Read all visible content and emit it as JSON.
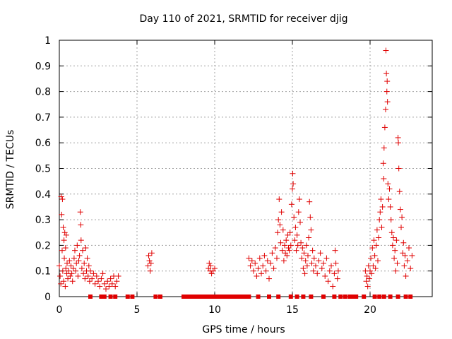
{
  "chart_data": {
    "type": "scatter",
    "title": "Day 110 of 2021, SRMTID for receiver djig",
    "xlabel": "GPS time / hours",
    "ylabel": "SRMTID / TECUs",
    "xlim": [
      0,
      24
    ],
    "ylim": [
      0,
      1
    ],
    "xticks": [
      0,
      5,
      10,
      15,
      20
    ],
    "xtick_labels": [
      "0",
      "5",
      "10",
      "15",
      "20"
    ],
    "yticks": [
      0,
      0.1,
      0.2,
      0.3,
      0.4,
      0.5,
      0.6,
      0.7,
      0.8,
      0.9,
      1
    ],
    "ytick_labels": [
      "0",
      "0.1",
      "0.2",
      "0.3",
      "0.4",
      "0.5",
      "0.6",
      "0.7",
      "0.8",
      "0.9",
      "1"
    ],
    "grid": true,
    "marker": "+",
    "color": "#e00000",
    "series": [
      {
        "name": "SRMTID",
        "points": [
          [
            0.0,
            0.12
          ],
          [
            0.05,
            0.08
          ],
          [
            0.1,
            0.05
          ],
          [
            0.12,
            0.39
          ],
          [
            0.15,
            0.32
          ],
          [
            0.18,
            0.18
          ],
          [
            0.2,
            0.38
          ],
          [
            0.22,
            0.1
          ],
          [
            0.25,
            0.27
          ],
          [
            0.28,
            0.06
          ],
          [
            0.3,
            0.22
          ],
          [
            0.32,
            0.15
          ],
          [
            0.35,
            0.25
          ],
          [
            0.38,
            0.04
          ],
          [
            0.4,
            0.19
          ],
          [
            0.42,
            0.11
          ],
          [
            0.45,
            0.24
          ],
          [
            0.48,
            0.09
          ],
          [
            0.5,
            0.13
          ],
          [
            0.55,
            0.07
          ],
          [
            0.6,
            0.1
          ],
          [
            0.65,
            0.14
          ],
          [
            0.7,
            0.08
          ],
          [
            0.75,
            0.12
          ],
          [
            0.8,
            0.09
          ],
          [
            0.85,
            0.06
          ],
          [
            0.9,
            0.11
          ],
          [
            0.95,
            0.15
          ],
          [
            1.0,
            0.18
          ],
          [
            1.05,
            0.1
          ],
          [
            1.1,
            0.13
          ],
          [
            1.15,
            0.2
          ],
          [
            1.2,
            0.08
          ],
          [
            1.25,
            0.14
          ],
          [
            1.3,
            0.16
          ],
          [
            1.35,
            0.33
          ],
          [
            1.38,
            0.28
          ],
          [
            1.4,
            0.22
          ],
          [
            1.45,
            0.11
          ],
          [
            1.5,
            0.18
          ],
          [
            1.55,
            0.09
          ],
          [
            1.6,
            0.13
          ],
          [
            1.65,
            0.07
          ],
          [
            1.7,
            0.19
          ],
          [
            1.75,
            0.1
          ],
          [
            1.8,
            0.15
          ],
          [
            1.85,
            0.08
          ],
          [
            1.9,
            0.12
          ],
          [
            1.95,
            0.06
          ],
          [
            2.0,
            0.1
          ],
          [
            2.1,
            0.07
          ],
          [
            2.2,
            0.09
          ],
          [
            2.3,
            0.05
          ],
          [
            2.4,
            0.08
          ],
          [
            2.5,
            0.06
          ],
          [
            2.6,
            0.04
          ],
          [
            2.7,
            0.07
          ],
          [
            2.8,
            0.09
          ],
          [
            2.9,
            0.05
          ],
          [
            3.0,
            0.03
          ],
          [
            3.1,
            0.06
          ],
          [
            3.2,
            0.04
          ],
          [
            3.3,
            0.07
          ],
          [
            3.4,
            0.05
          ],
          [
            3.5,
            0.08
          ],
          [
            3.6,
            0.04
          ],
          [
            3.7,
            0.06
          ],
          [
            3.8,
            0.08
          ],
          [
            5.7,
            0.12
          ],
          [
            5.75,
            0.16
          ],
          [
            5.8,
            0.14
          ],
          [
            5.85,
            0.1
          ],
          [
            5.9,
            0.13
          ],
          [
            5.95,
            0.17
          ],
          [
            9.6,
            0.11
          ],
          [
            9.65,
            0.13
          ],
          [
            9.7,
            0.1
          ],
          [
            9.75,
            0.12
          ],
          [
            9.8,
            0.09
          ],
          [
            9.9,
            0.1
          ],
          [
            10.0,
            0.11
          ],
          [
            12.2,
            0.15
          ],
          [
            12.3,
            0.12
          ],
          [
            12.4,
            0.14
          ],
          [
            12.5,
            0.1
          ],
          [
            12.6,
            0.13
          ],
          [
            12.7,
            0.08
          ],
          [
            12.8,
            0.11
          ],
          [
            12.9,
            0.15
          ],
          [
            13.0,
            0.09
          ],
          [
            13.1,
            0.12
          ],
          [
            13.2,
            0.16
          ],
          [
            13.3,
            0.1
          ],
          [
            13.4,
            0.14
          ],
          [
            13.5,
            0.07
          ],
          [
            13.6,
            0.13
          ],
          [
            13.7,
            0.17
          ],
          [
            13.8,
            0.11
          ],
          [
            13.9,
            0.19
          ],
          [
            14.0,
            0.15
          ],
          [
            14.05,
            0.25
          ],
          [
            14.1,
            0.3
          ],
          [
            14.15,
            0.38
          ],
          [
            14.2,
            0.28
          ],
          [
            14.25,
            0.21
          ],
          [
            14.3,
            0.33
          ],
          [
            14.35,
            0.18
          ],
          [
            14.4,
            0.26
          ],
          [
            14.45,
            0.14
          ],
          [
            14.5,
            0.2
          ],
          [
            14.55,
            0.17
          ],
          [
            14.6,
            0.22
          ],
          [
            14.65,
            0.16
          ],
          [
            14.7,
            0.24
          ],
          [
            14.75,
            0.19
          ],
          [
            14.8,
            0.18
          ],
          [
            14.85,
            0.25
          ],
          [
            14.9,
            0.2
          ],
          [
            14.95,
            0.36
          ],
          [
            15.0,
            0.42
          ],
          [
            15.02,
            0.48
          ],
          [
            15.05,
            0.44
          ],
          [
            15.1,
            0.31
          ],
          [
            15.15,
            0.22
          ],
          [
            15.2,
            0.27
          ],
          [
            15.25,
            0.18
          ],
          [
            15.3,
            0.24
          ],
          [
            15.35,
            0.2
          ],
          [
            15.4,
            0.33
          ],
          [
            15.45,
            0.38
          ],
          [
            15.5,
            0.29
          ],
          [
            15.55,
            0.21
          ],
          [
            15.6,
            0.15
          ],
          [
            15.65,
            0.19
          ],
          [
            15.7,
            0.11
          ],
          [
            15.75,
            0.17
          ],
          [
            15.8,
            0.09
          ],
          [
            15.85,
            0.14
          ],
          [
            15.9,
            0.2
          ],
          [
            15.95,
            0.12
          ],
          [
            16.0,
            0.16
          ],
          [
            16.05,
            0.23
          ],
          [
            16.1,
            0.37
          ],
          [
            16.15,
            0.31
          ],
          [
            16.2,
            0.26
          ],
          [
            16.25,
            0.13
          ],
          [
            16.3,
            0.18
          ],
          [
            16.35,
            0.1
          ],
          [
            16.4,
            0.15
          ],
          [
            16.5,
            0.12
          ],
          [
            16.6,
            0.09
          ],
          [
            16.7,
            0.14
          ],
          [
            16.8,
            0.17
          ],
          [
            16.9,
            0.11
          ],
          [
            17.0,
            0.13
          ],
          [
            17.1,
            0.08
          ],
          [
            17.2,
            0.15
          ],
          [
            17.3,
            0.06
          ],
          [
            17.4,
            0.1
          ],
          [
            17.5,
            0.12
          ],
          [
            17.6,
            0.04
          ],
          [
            17.7,
            0.09
          ],
          [
            17.75,
            0.18
          ],
          [
            17.8,
            0.13
          ],
          [
            17.9,
            0.07
          ],
          [
            17.95,
            0.1
          ],
          [
            19.7,
            0.1
          ],
          [
            19.75,
            0.06
          ],
          [
            19.8,
            0.08
          ],
          [
            19.85,
            0.04
          ],
          [
            19.9,
            0.12
          ],
          [
            19.95,
            0.07
          ],
          [
            20.0,
            0.1
          ],
          [
            20.05,
            0.15
          ],
          [
            20.1,
            0.09
          ],
          [
            20.15,
            0.19
          ],
          [
            20.2,
            0.12
          ],
          [
            20.25,
            0.22
          ],
          [
            20.3,
            0.16
          ],
          [
            20.35,
            0.11
          ],
          [
            20.4,
            0.2
          ],
          [
            20.45,
            0.26
          ],
          [
            20.5,
            0.14
          ],
          [
            20.55,
            0.23
          ],
          [
            20.6,
            0.3
          ],
          [
            20.65,
            0.33
          ],
          [
            20.7,
            0.38
          ],
          [
            20.75,
            0.27
          ],
          [
            20.8,
            0.35
          ],
          [
            20.85,
            0.52
          ],
          [
            20.88,
            0.46
          ],
          [
            20.9,
            0.58
          ],
          [
            20.95,
            0.66
          ],
          [
            21.0,
            0.73
          ],
          [
            21.02,
            0.96
          ],
          [
            21.05,
            0.87
          ],
          [
            21.08,
            0.8
          ],
          [
            21.1,
            0.84
          ],
          [
            21.12,
            0.76
          ],
          [
            21.15,
            0.44
          ],
          [
            21.2,
            0.38
          ],
          [
            21.25,
            0.42
          ],
          [
            21.3,
            0.35
          ],
          [
            21.35,
            0.3
          ],
          [
            21.4,
            0.25
          ],
          [
            21.45,
            0.2
          ],
          [
            21.5,
            0.23
          ],
          [
            21.55,
            0.15
          ],
          [
            21.6,
            0.18
          ],
          [
            21.65,
            0.1
          ],
          [
            21.7,
            0.22
          ],
          [
            21.75,
            0.13
          ],
          [
            21.8,
            0.62
          ],
          [
            21.82,
            0.6
          ],
          [
            21.85,
            0.5
          ],
          [
            21.9,
            0.41
          ],
          [
            21.95,
            0.34
          ],
          [
            22.0,
            0.27
          ],
          [
            22.05,
            0.31
          ],
          [
            22.1,
            0.17
          ],
          [
            22.15,
            0.21
          ],
          [
            22.2,
            0.12
          ],
          [
            22.25,
            0.16
          ],
          [
            22.3,
            0.08
          ],
          [
            22.4,
            0.14
          ],
          [
            22.5,
            0.19
          ],
          [
            22.6,
            0.11
          ],
          [
            22.7,
            0.16
          ]
        ]
      }
    ],
    "zero_points_x": [
      2.0,
      2.7,
      2.9,
      3.3,
      3.6,
      4.4,
      4.7,
      6.2,
      6.5,
      8.0,
      8.2,
      8.4,
      8.6,
      8.8,
      9.0,
      9.2,
      9.4,
      9.6,
      9.8,
      10.0,
      10.2,
      10.4,
      10.6,
      10.8,
      11.0,
      11.2,
      11.4,
      11.6,
      11.8,
      12.0,
      12.2,
      12.8,
      13.5,
      14.1,
      14.9,
      15.3,
      15.7,
      16.2,
      17.0,
      17.7,
      18.1,
      18.4,
      18.7,
      18.9,
      19.1,
      19.6,
      20.3,
      20.6,
      20.9,
      21.3,
      21.8,
      22.3,
      22.6
    ]
  }
}
